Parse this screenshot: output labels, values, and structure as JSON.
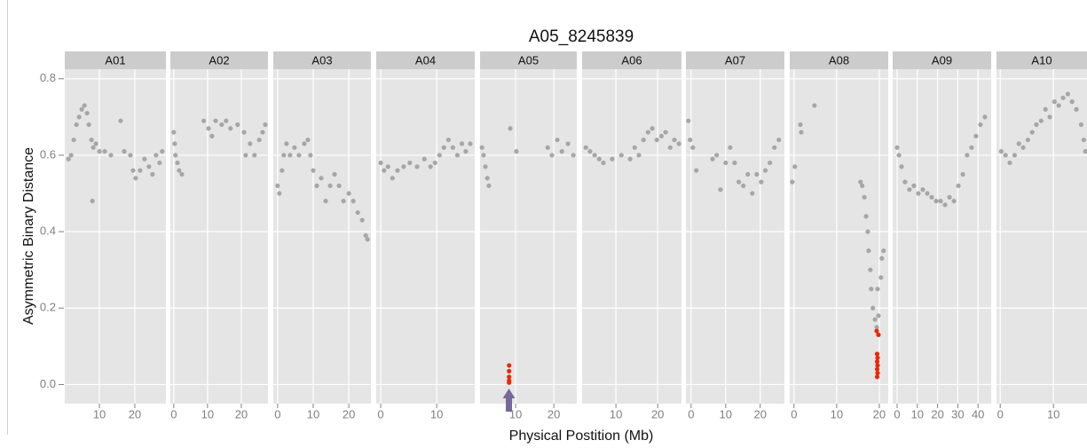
{
  "chart_data": {
    "type": "scatter",
    "title": "A05_8245839",
    "x_label": "Physical Postition (Mb)",
    "y_label": "Asymmetric Binary Distance",
    "ylim": [
      -0.05,
      0.825
    ],
    "yticks": [
      {
        "value": 0,
        "label": "0.0"
      },
      0.2,
      0.4,
      0.6,
      0.8
    ],
    "grid": true,
    "panels": [
      {
        "name": "A01",
        "xlim": [
          0.2,
          28.8
        ],
        "xticks": [
          10,
          20
        ],
        "points": {
          "color": "#a6a6a6",
          "x": [
            1.25,
            2,
            2.75,
            3.5,
            4.25,
            5,
            5.75,
            6.5,
            7,
            7.75,
            8.25,
            9,
            10,
            8,
            11.5,
            13.25,
            16,
            17,
            18.75,
            19.5,
            20.25,
            21.5,
            22.75,
            24,
            25,
            26,
            27,
            27.75
          ],
          "y": [
            0.59,
            0.6,
            0.64,
            0.68,
            0.7,
            0.72,
            0.73,
            0.71,
            0.68,
            0.64,
            0.62,
            0.63,
            0.61,
            0.48,
            0.61,
            0.6,
            0.69,
            0.61,
            0.6,
            0.56,
            0.54,
            0.56,
            0.59,
            0.57,
            0.55,
            0.6,
            0.58,
            0.61
          ]
        }
      },
      {
        "name": "A02",
        "xlim": [
          -1,
          27.9
        ],
        "xticks": [
          0,
          10,
          20
        ],
        "points": {
          "color": "#a6a6a6",
          "x": [
            0,
            0.3,
            0.5,
            1.1,
            1.6,
            2.4,
            8.9,
            10.3,
            11.3,
            12.4,
            14.2,
            15.5,
            16.8,
            18.9,
            20.8,
            21.3,
            22.6,
            23.9,
            25.3,
            26.3,
            27.1
          ],
          "y": [
            0.66,
            0.63,
            0.6,
            0.58,
            0.56,
            0.55,
            0.69,
            0.67,
            0.65,
            0.69,
            0.68,
            0.69,
            0.67,
            0.68,
            0.66,
            0.6,
            0.63,
            0.6,
            0.64,
            0.66,
            0.68
          ]
        }
      },
      {
        "name": "A03",
        "xlim": [
          -1.2,
          26.2
        ],
        "xticks": [
          0,
          10,
          20
        ],
        "points": {
          "color": "#a6a6a6",
          "x": [
            0,
            0.5,
            1.25,
            1.75,
            2.5,
            3.5,
            4.75,
            6,
            7.5,
            8.5,
            9.25,
            10,
            11,
            12.25,
            13.5,
            14.75,
            16,
            17.25,
            18.5,
            20,
            21.25,
            22.5,
            23.75,
            24.75,
            25.25
          ],
          "y": [
            0.52,
            0.5,
            0.56,
            0.6,
            0.63,
            0.6,
            0.62,
            0.6,
            0.63,
            0.64,
            0.6,
            0.56,
            0.52,
            0.54,
            0.48,
            0.52,
            0.55,
            0.52,
            0.48,
            0.5,
            0.48,
            0.45,
            0.43,
            0.39,
            0.38
          ]
        }
      },
      {
        "name": "A04",
        "xlim": [
          -0.8,
          16.8
        ],
        "xticks": [
          0,
          10
        ],
        "points": {
          "color": "#a6a6a6",
          "x": [
            0,
            0.6,
            1.3,
            2.1,
            3,
            4.1,
            5.2,
            6.5,
            7.8,
            8.9,
            9.7,
            10.5,
            11.3,
            12.1,
            12.9,
            13.7,
            14.5,
            15.2,
            16
          ],
          "y": [
            0.58,
            0.56,
            0.57,
            0.54,
            0.56,
            0.57,
            0.58,
            0.57,
            0.59,
            0.57,
            0.58,
            0.6,
            0.62,
            0.64,
            0.62,
            0.6,
            0.63,
            0.61,
            0.63
          ]
        }
      },
      {
        "name": "A05",
        "xlim": [
          0.7,
          26
        ],
        "xticks": [
          10,
          20
        ],
        "marker_position": 8.25,
        "points": {
          "color": "#a6a6a6",
          "x": [
            1.2,
            1.6,
            2.1,
            2.6,
            3,
            8.6,
            10.2,
            18.4,
            19.5,
            20.9,
            22.1,
            23.7,
            25.1
          ],
          "y": [
            0.62,
            0.6,
            0.57,
            0.54,
            0.52,
            0.67,
            0.61,
            0.62,
            0.6,
            0.64,
            0.61,
            0.63,
            0.6
          ]
        },
        "highlight": {
          "color": "#e8290b",
          "x": [
            8.3,
            8.3,
            8.3,
            8.3,
            8.3
          ],
          "y": [
            0.05,
            0.035,
            0.02,
            0.01,
            0.005
          ]
        }
      },
      {
        "name": "A06",
        "xlim": [
          1.9,
          25.7
        ],
        "xticks": [
          10,
          20
        ],
        "points": {
          "color": "#a6a6a6",
          "x": [
            2.8,
            3.8,
            4.9,
            6,
            7,
            9.1,
            11.3,
            13.4,
            14.5,
            15.5,
            16.6,
            17.7,
            18.7,
            19.8,
            20.9,
            21.9,
            23,
            24,
            25.1
          ],
          "y": [
            0.62,
            0.61,
            0.6,
            0.59,
            0.58,
            0.59,
            0.6,
            0.59,
            0.62,
            0.6,
            0.64,
            0.66,
            0.67,
            0.64,
            0.65,
            0.66,
            0.62,
            0.64,
            0.63
          ]
        }
      },
      {
        "name": "A07",
        "xlim": [
          -1.5,
          27
        ],
        "xticks": [
          0,
          10,
          20
        ],
        "points": {
          "color": "#a6a6a6",
          "x": [
            -0.8,
            -0.3,
            0.5,
            1.5,
            6.2,
            7.4,
            8.5,
            10,
            11.3,
            12.6,
            13.8,
            15.1,
            16.4,
            17.7,
            19,
            20.3,
            21.5,
            22.8,
            24.1,
            25.4
          ],
          "y": [
            0.69,
            0.64,
            0.62,
            0.56,
            0.59,
            0.6,
            0.51,
            0.58,
            0.62,
            0.58,
            0.53,
            0.52,
            0.55,
            0.5,
            0.55,
            0.53,
            0.56,
            0.58,
            0.62,
            0.64
          ]
        }
      },
      {
        "name": "A08",
        "xlim": [
          -1,
          22.1
        ],
        "xticks": [
          0,
          10,
          20
        ],
        "points": {
          "color": "#a6a6a6",
          "x": [
            -0.4,
            0.2,
            1.5,
            1.7,
            4.8,
            15.6,
            16,
            16.5,
            16.9,
            17.3,
            17.5,
            17.9,
            18.1,
            18.5,
            19,
            19.4,
            19.6,
            19.8,
            20.4,
            20.6,
            21
          ],
          "y": [
            0.53,
            0.57,
            0.68,
            0.66,
            0.73,
            0.53,
            0.52,
            0.49,
            0.44,
            0.4,
            0.35,
            0.3,
            0.25,
            0.2,
            0.17,
            0.15,
            0.25,
            0.18,
            0.28,
            0.33,
            0.35
          ]
        },
        "highlight": {
          "color": "#e8290b",
          "x": [
            19.4,
            19.8,
            19.5,
            19.6,
            19.5,
            19.6,
            19.5,
            19.6,
            19.5
          ],
          "y": [
            0.14,
            0.13,
            0.08,
            0.07,
            0.06,
            0.05,
            0.04,
            0.03,
            0.02
          ]
        }
      },
      {
        "name": "A09",
        "xlim": [
          -2.2,
          46.5
        ],
        "xticks": [
          0,
          10,
          20,
          30,
          40
        ],
        "points": {
          "color": "#a6a6a6",
          "x": [
            0,
            0.9,
            2.2,
            3.9,
            6.1,
            8.3,
            10.5,
            12.7,
            14.9,
            17.1,
            19.3,
            21.5,
            23.7,
            25.9,
            28.1,
            30.3,
            32.5,
            34.6,
            36.8,
            39,
            41.2,
            43.4
          ],
          "y": [
            0.62,
            0.6,
            0.57,
            0.53,
            0.51,
            0.52,
            0.5,
            0.51,
            0.5,
            0.49,
            0.48,
            0.48,
            0.47,
            0.49,
            0.48,
            0.52,
            0.55,
            0.6,
            0.62,
            0.65,
            0.68,
            0.7
          ]
        }
      },
      {
        "name": "A10",
        "xlim": [
          -0.7,
          16.3
        ],
        "xticks": [
          0,
          10
        ],
        "points": {
          "color": "#a6a6a6",
          "x": [
            0.2,
            1,
            1.8,
            2.7,
            3.5,
            4.3,
            5.2,
            6,
            6.8,
            7.7,
            8.5,
            9.3,
            10.2,
            11,
            11.8,
            12.7,
            13.5,
            14.3,
            15.2,
            15.7,
            16
          ],
          "y": [
            0.61,
            0.6,
            0.58,
            0.6,
            0.63,
            0.62,
            0.64,
            0.66,
            0.68,
            0.69,
            0.72,
            0.7,
            0.74,
            0.73,
            0.75,
            0.76,
            0.74,
            0.72,
            0.68,
            0.64,
            0.61
          ]
        }
      }
    ]
  }
}
